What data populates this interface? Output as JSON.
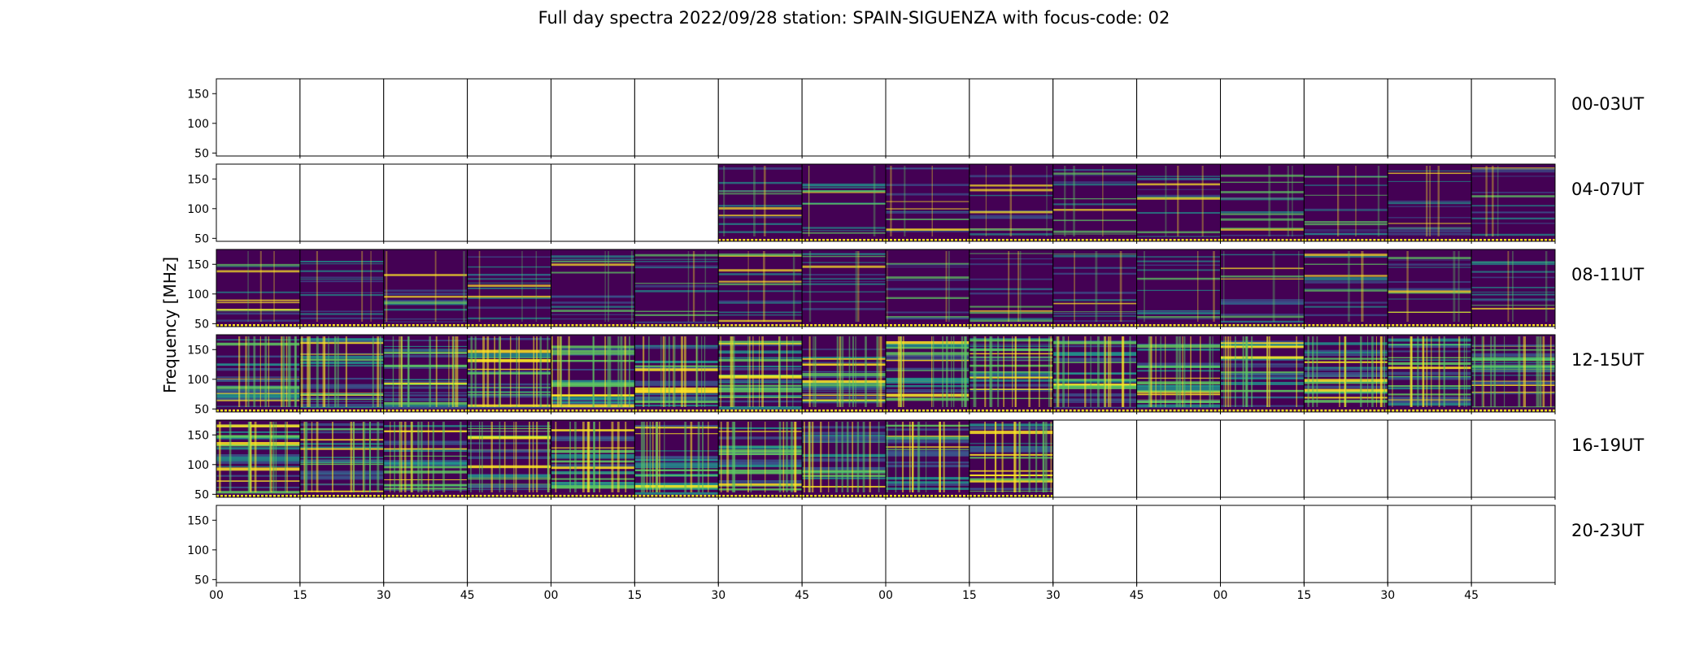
{
  "title": "Full day spectra 2022/09/28 station: SPAIN-SIGUENZA with focus-code: 02",
  "chart_data": {
    "type": "heatmap",
    "title": "Full day spectra 2022/09/28 station: SPAIN-SIGUENZA with focus-code: 02",
    "ylabel": "Frequency [MHz]",
    "xlabel": "",
    "y_ticks": [
      50,
      100,
      150
    ],
    "ylim": [
      45,
      175
    ],
    "x_tick_labels": [
      "00",
      "15",
      "30",
      "45",
      "00",
      "15",
      "30",
      "45",
      "00",
      "15",
      "30",
      "45",
      "00",
      "15",
      "30",
      "45"
    ],
    "panels_per_row": 16,
    "colormap": [
      "#440154",
      "#3b528b",
      "#21918c",
      "#5ec962",
      "#fde725"
    ],
    "rows": [
      {
        "label": "00-03UT",
        "data_panels": []
      },
      {
        "label": "04-07UT",
        "data_panels": [
          6,
          7,
          8,
          9,
          10,
          11,
          12,
          13,
          14,
          15
        ]
      },
      {
        "label": "08-11UT",
        "data_panels": [
          0,
          1,
          2,
          3,
          4,
          5,
          6,
          7,
          8,
          9,
          10,
          11,
          12,
          13,
          14,
          15
        ]
      },
      {
        "label": "12-15UT",
        "data_panels": [
          0,
          1,
          2,
          3,
          4,
          5,
          6,
          7,
          8,
          9,
          10,
          11,
          12,
          13,
          14,
          15
        ]
      },
      {
        "label": "16-19UT",
        "data_panels": [
          0,
          1,
          2,
          3,
          4,
          5,
          6,
          7,
          8,
          9
        ]
      },
      {
        "label": "20-23UT",
        "data_panels": []
      }
    ]
  }
}
